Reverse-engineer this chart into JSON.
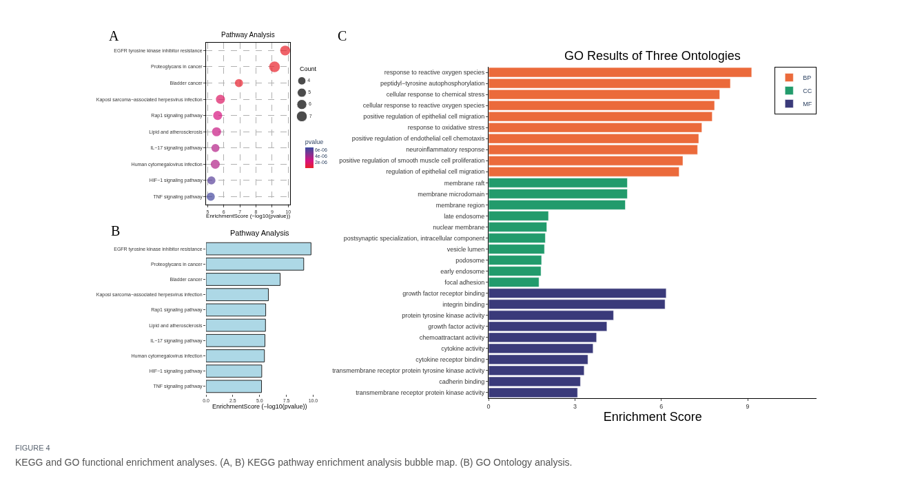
{
  "chart_data": [
    {
      "type": "bubble",
      "orientation": "horizontal",
      "title": "Pathway Analysis",
      "xlabel": "EnrichmentScore (−log10(pvalue))",
      "annotations": [
        "A"
      ],
      "categories": [
        "EGFR tyrosine kinase inhibitor resistance",
        "Proteoglycans in cancer",
        "Bladder cancer",
        "Kaposi sarcoma−associated herpesvirus infection",
        "Rap1 signaling pathway",
        "Lipid and atherosclerosis",
        "IL−17 signaling pathway",
        "Human cytomegalovirus infection",
        "HIF−1 signaling pathway",
        "TNF signaling pathway"
      ],
      "values": [
        9.81,
        9.15,
        6.94,
        5.79,
        5.62,
        5.55,
        5.48,
        5.47,
        5.23,
        5.19
      ],
      "sizes": [
        6,
        7,
        4,
        5,
        5,
        5,
        4,
        5,
        4,
        4
      ],
      "size_legend": [
        4,
        5,
        6,
        7
      ],
      "legend_title": "Count",
      "cvalues": [
        1.5e-10,
        7e-10,
        1.1e-07,
        1.6e-06,
        2.4e-06,
        2.8e-06,
        3.3e-06,
        3.4e-06,
        5.9e-06,
        6.5e-06
      ],
      "clabel": "pvalue",
      "clim": [
        0,
        6.8e-06
      ],
      "cticks": [
        {
          "value": 2e-06,
          "label": "2e-06"
        },
        {
          "value": 4e-06,
          "label": "4e-06"
        },
        {
          "value": 6e-06,
          "label": "6e-06"
        }
      ],
      "xlim": [
        4.9,
        10.12
      ],
      "xticks": [
        5,
        6,
        7,
        8,
        9,
        10
      ],
      "grid": true
    },
    {
      "type": "bar",
      "orientation": "horizontal",
      "title": "Pathway Analysis",
      "xlabel": "EnrichmentScore (−log10(pvalue))",
      "annotations": [
        "B"
      ],
      "categories": [
        "EGFR tyrosine kinase inhibitor resistance",
        "Proteoglycans in cancer",
        "Bladder cancer",
        "Kaposi sarcoma−associated herpesvirus infection",
        "Rap1 signaling pathway",
        "Lipid and atherosclerosis",
        "IL−17 signaling pathway",
        "Human cytomegalovirus infection",
        "HIF−1 signaling pathway",
        "TNF signaling pathway"
      ],
      "values": [
        9.8,
        9.12,
        6.92,
        5.82,
        5.57,
        5.55,
        5.5,
        5.45,
        5.2,
        5.18
      ],
      "color": "#add8e6",
      "xlim": [
        0,
        10
      ],
      "xticks": [
        {
          "value": 0,
          "label": "0.0"
        },
        {
          "value": 2.5,
          "label": "2.5"
        },
        {
          "value": 5,
          "label": "5.0"
        },
        {
          "value": 7.5,
          "label": "7.5"
        },
        {
          "value": 10,
          "label": "10.0"
        }
      ],
      "grid": false
    },
    {
      "type": "bar",
      "orientation": "horizontal",
      "title": "GO Results of Three Ontologies",
      "xlabel": "Enrichment Score",
      "annotations": [
        "C"
      ],
      "categories": [
        "response to reactive oxygen species",
        "peptidyl−tyrosine autophosphorylation",
        "cellular response to chemical stress",
        "cellular response to reactive oxygen species",
        "positive regulation of epithelial cell migration",
        "response to oxidative stress",
        "positive regulation of endothelial cell chemotaxis",
        "neuroinflammatory response",
        "positive regulation of smooth muscle cell proliferation",
        "regulation of epithelial cell migration",
        "membrane raft",
        "membrane microdomain",
        "membrane region",
        "late endosome",
        "nuclear membrane",
        "postsynaptic specialization, intracellular component",
        "vesicle lumen",
        "podosome",
        "early endosome",
        "focal adhesion",
        "growth factor receptor binding",
        "integrin binding",
        "protein tyrosine kinase activity",
        "growth factor activity",
        "chemoattractant activity",
        "cytokine activity",
        "cytokine receptor binding",
        "transmembrane receptor protein tyrosine kinase activity",
        "cadherin binding",
        "transmembrane receptor protein kinase activity"
      ],
      "series": [
        {
          "name": "BP",
          "color": "#eb6a3b",
          "values": [
            9.14,
            8.4,
            8.03,
            7.85,
            7.77,
            7.41,
            7.3,
            7.26,
            6.75,
            6.62,
            null,
            null,
            null,
            null,
            null,
            null,
            null,
            null,
            null,
            null,
            null,
            null,
            null,
            null,
            null,
            null,
            null,
            null,
            null,
            null
          ]
        },
        {
          "name": "CC",
          "color": "#229b6c",
          "values": [
            null,
            null,
            null,
            null,
            null,
            null,
            null,
            null,
            null,
            null,
            4.82,
            4.82,
            4.75,
            2.08,
            2.02,
            1.97,
            1.94,
            1.84,
            1.82,
            1.75,
            null,
            null,
            null,
            null,
            null,
            null,
            null,
            null,
            null,
            null
          ]
        },
        {
          "name": "MF",
          "color": "#3a3a7a",
          "values": [
            null,
            null,
            null,
            null,
            null,
            null,
            null,
            null,
            null,
            null,
            null,
            null,
            null,
            null,
            null,
            null,
            null,
            null,
            null,
            null,
            6.17,
            6.13,
            4.34,
            4.11,
            3.75,
            3.63,
            3.45,
            3.32,
            3.19,
            3.09
          ]
        }
      ],
      "xlim": [
        0,
        11.4
      ],
      "xticks": [
        0,
        3,
        6,
        9
      ],
      "grid": false,
      "legend": "top right"
    },
    {
      "type": "other",
      "title": "FIGURE 4",
      "annotations": [
        "KEGG and GO functional enrichment analyses. (A, B) KEGG pathway enrichment analysis bubble map. (B) GO Ontology analysis."
      ]
    }
  ]
}
